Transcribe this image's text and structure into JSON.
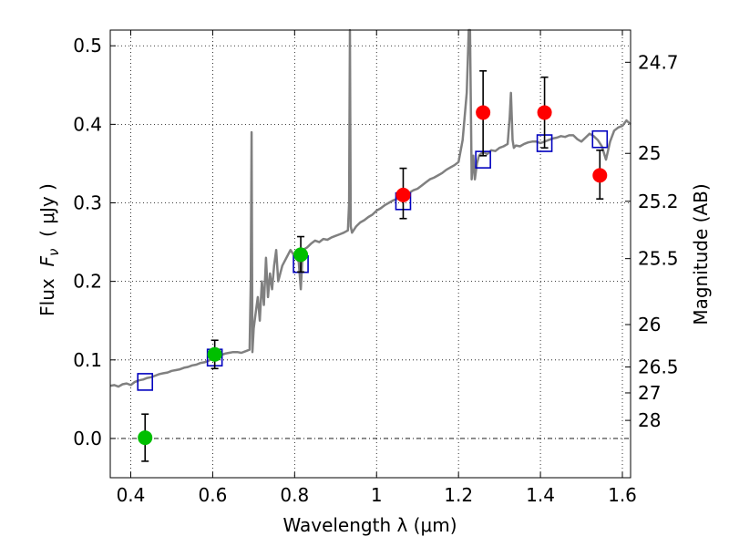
{
  "chart_data": {
    "type": "scatter",
    "xlabel": "Wavelength  λ (μm)",
    "ylabel_parts": {
      "prefix": "Flux  ",
      "symbol": "F",
      "subscript": "ν",
      "unit": "  ( μJy )"
    },
    "ylabel_right": "Magnitude (AB)",
    "xlim": [
      0.35,
      1.62
    ],
    "ylim": [
      -0.05,
      0.52
    ],
    "grid": true,
    "x_ticks": [
      0.4,
      0.6,
      0.8,
      1.0,
      1.2,
      1.4,
      1.6
    ],
    "x_tick_labels": [
      "0.4",
      "0.6",
      "0.8",
      "1",
      "1.2",
      "1.4",
      "1.6"
    ],
    "y_ticks": [
      0.0,
      0.1,
      0.2,
      0.3,
      0.4,
      0.5
    ],
    "y_tick_labels": [
      "0.0",
      "0.1",
      "0.2",
      "0.3",
      "0.4",
      "0.5"
    ],
    "right_ticks": [
      {
        "label": "24.7",
        "flux": 0.479
      },
      {
        "label": "25",
        "flux": 0.363
      },
      {
        "label": "25.2",
        "flux": 0.302
      },
      {
        "label": "25.5",
        "flux": 0.229
      },
      {
        "label": "26",
        "flux": 0.145
      },
      {
        "label": "26.5",
        "flux": 0.091
      },
      {
        "label": "27",
        "flux": 0.058
      },
      {
        "label": "28",
        "flux": 0.023
      }
    ],
    "zero_line": true,
    "colors": {
      "spectrum": "#808080",
      "green": "#00bf00",
      "red": "#ff0000",
      "model": "#0000bf",
      "grid": "#000000"
    },
    "series": [
      {
        "name": "Template spectrum",
        "type": "line",
        "x": [
          0.35,
          0.36,
          0.37,
          0.38,
          0.39,
          0.4,
          0.41,
          0.42,
          0.43,
          0.44,
          0.45,
          0.46,
          0.47,
          0.48,
          0.49,
          0.5,
          0.51,
          0.52,
          0.53,
          0.54,
          0.55,
          0.56,
          0.57,
          0.58,
          0.59,
          0.6,
          0.61,
          0.62,
          0.63,
          0.64,
          0.65,
          0.66,
          0.67,
          0.68,
          0.69,
          0.693,
          0.695,
          0.697,
          0.7,
          0.705,
          0.71,
          0.715,
          0.72,
          0.725,
          0.73,
          0.735,
          0.74,
          0.745,
          0.75,
          0.755,
          0.76,
          0.77,
          0.78,
          0.79,
          0.8,
          0.81,
          0.815,
          0.82,
          0.83,
          0.84,
          0.85,
          0.86,
          0.87,
          0.88,
          0.89,
          0.9,
          0.91,
          0.92,
          0.93,
          0.933,
          0.935,
          0.937,
          0.94,
          0.95,
          0.96,
          0.97,
          0.98,
          0.99,
          1.0,
          1.01,
          1.02,
          1.03,
          1.04,
          1.05,
          1.06,
          1.07,
          1.08,
          1.09,
          1.1,
          1.11,
          1.12,
          1.13,
          1.14,
          1.15,
          1.16,
          1.17,
          1.18,
          1.19,
          1.2,
          1.21,
          1.22,
          1.225,
          1.228,
          1.232,
          1.236,
          1.24,
          1.245,
          1.25,
          1.26,
          1.27,
          1.28,
          1.29,
          1.3,
          1.31,
          1.32,
          1.325,
          1.328,
          1.332,
          1.335,
          1.34,
          1.35,
          1.36,
          1.37,
          1.38,
          1.39,
          1.4,
          1.41,
          1.42,
          1.43,
          1.44,
          1.45,
          1.46,
          1.47,
          1.48,
          1.49,
          1.5,
          1.51,
          1.52,
          1.53,
          1.54,
          1.55,
          1.56,
          1.57,
          1.58,
          1.59,
          1.6,
          1.61,
          1.62
        ],
        "y": [
          0.067,
          0.068,
          0.066,
          0.069,
          0.07,
          0.068,
          0.072,
          0.074,
          0.075,
          0.077,
          0.078,
          0.08,
          0.082,
          0.083,
          0.084,
          0.086,
          0.087,
          0.088,
          0.09,
          0.091,
          0.093,
          0.094,
          0.096,
          0.097,
          0.099,
          0.102,
          0.104,
          0.106,
          0.108,
          0.109,
          0.11,
          0.11,
          0.109,
          0.111,
          0.113,
          0.2,
          0.39,
          0.11,
          0.14,
          0.16,
          0.18,
          0.15,
          0.2,
          0.17,
          0.23,
          0.18,
          0.21,
          0.19,
          0.22,
          0.24,
          0.2,
          0.22,
          0.23,
          0.24,
          0.232,
          0.225,
          0.19,
          0.24,
          0.243,
          0.248,
          0.252,
          0.25,
          0.254,
          0.253,
          0.256,
          0.258,
          0.26,
          0.262,
          0.265,
          0.3,
          0.52,
          0.27,
          0.262,
          0.27,
          0.275,
          0.278,
          0.282,
          0.285,
          0.29,
          0.293,
          0.297,
          0.3,
          0.303,
          0.305,
          0.308,
          0.31,
          0.313,
          0.316,
          0.318,
          0.322,
          0.326,
          0.33,
          0.332,
          0.335,
          0.338,
          0.342,
          0.345,
          0.348,
          0.352,
          0.38,
          0.44,
          0.52,
          0.52,
          0.33,
          0.36,
          0.33,
          0.35,
          0.36,
          0.365,
          0.362,
          0.367,
          0.366,
          0.37,
          0.372,
          0.375,
          0.41,
          0.44,
          0.38,
          0.37,
          0.373,
          0.372,
          0.375,
          0.377,
          0.378,
          0.378,
          0.376,
          0.378,
          0.38,
          0.382,
          0.383,
          0.385,
          0.384,
          0.386,
          0.386,
          0.381,
          0.378,
          0.383,
          0.388,
          0.385,
          0.38,
          0.372,
          0.355,
          0.378,
          0.392,
          0.396,
          0.398,
          0.405,
          0.4
        ]
      },
      {
        "name": "Green photometry",
        "type": "errorbar",
        "points": [
          {
            "x": 0.435,
            "y": 0.001,
            "lo": -0.029,
            "hi": 0.031
          },
          {
            "x": 0.605,
            "y": 0.107,
            "lo": 0.089,
            "hi": 0.125
          },
          {
            "x": 0.815,
            "y": 0.234,
            "lo": 0.212,
            "hi": 0.257
          }
        ]
      },
      {
        "name": "Red photometry",
        "type": "errorbar",
        "points": [
          {
            "x": 1.065,
            "y": 0.31,
            "lo": 0.28,
            "hi": 0.344
          },
          {
            "x": 1.26,
            "y": 0.415,
            "lo": 0.36,
            "hi": 0.468
          },
          {
            "x": 1.41,
            "y": 0.415,
            "lo": 0.37,
            "hi": 0.46
          },
          {
            "x": 1.545,
            "y": 0.335,
            "lo": 0.305,
            "hi": 0.367
          }
        ]
      },
      {
        "name": "Model synthetic photometry",
        "type": "marker-square",
        "points": [
          {
            "x": 0.435,
            "y": 0.072
          },
          {
            "x": 0.605,
            "y": 0.103
          },
          {
            "x": 0.815,
            "y": 0.222
          },
          {
            "x": 1.065,
            "y": 0.302
          },
          {
            "x": 1.26,
            "y": 0.355
          },
          {
            "x": 1.41,
            "y": 0.376
          },
          {
            "x": 1.545,
            "y": 0.381
          }
        ]
      }
    ]
  }
}
